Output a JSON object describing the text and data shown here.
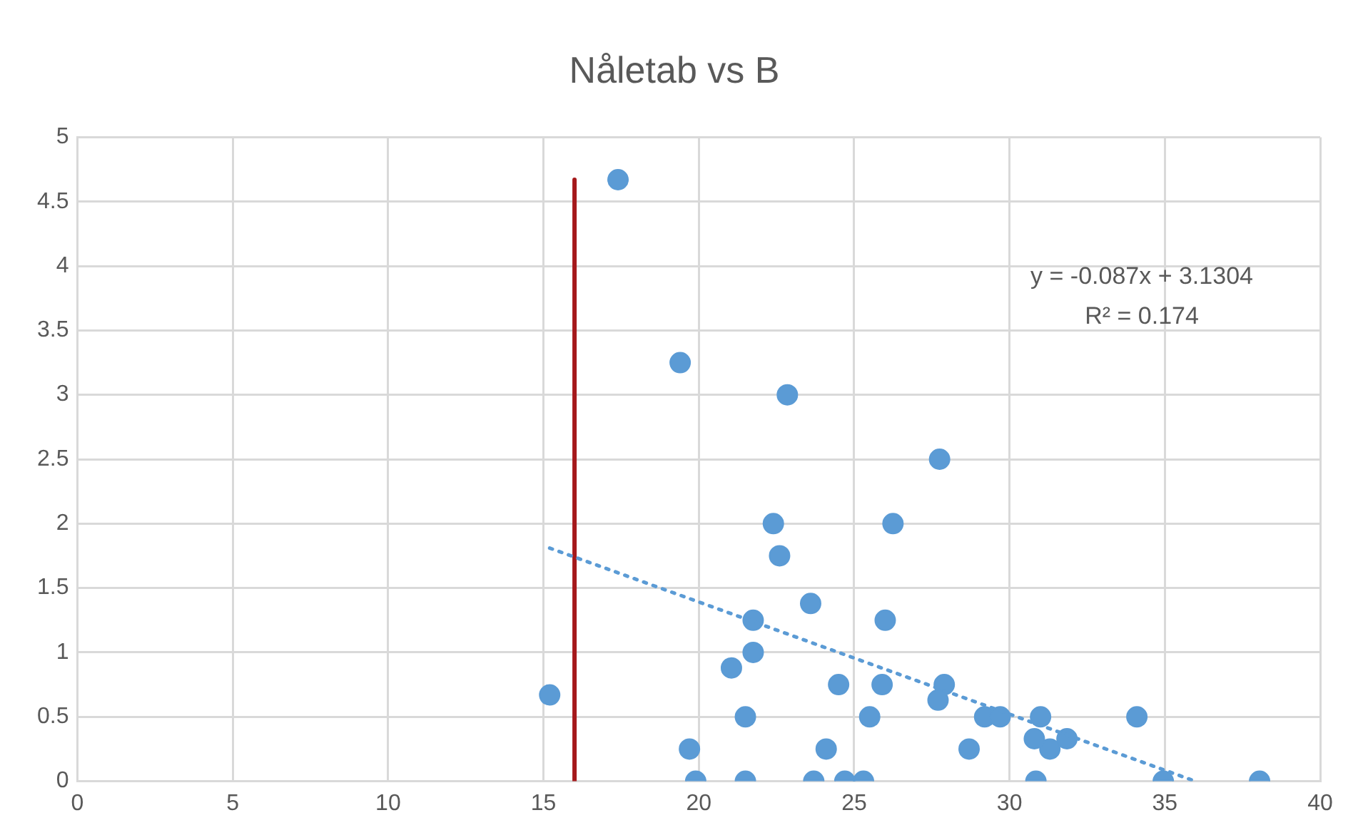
{
  "chart_data": {
    "type": "scatter",
    "title": "Nåletab vs B",
    "xlim": [
      0,
      40
    ],
    "xticks": [
      0,
      5,
      10,
      15,
      20,
      25,
      30,
      35,
      40
    ],
    "ylim": [
      0,
      5
    ],
    "yticks": [
      0,
      0.5,
      1,
      1.5,
      2,
      2.5,
      3,
      3.5,
      4,
      4.5,
      5
    ],
    "grid": true,
    "legend": false,
    "series": [
      {
        "marker": "circle",
        "color": "#5b9bd5",
        "x": [
          15.2,
          17.4,
          19.4,
          22.85,
          27.75,
          22.4,
          26.25,
          22.6,
          23.6,
          21.75,
          26.0,
          21.75,
          21.05,
          24.5,
          25.9,
          27.9,
          27.7,
          21.5,
          25.5,
          29.2,
          29.7,
          31.0,
          34.1,
          19.7,
          24.1,
          28.7,
          31.3,
          30.8,
          31.85,
          19.9,
          21.5,
          23.7,
          24.7,
          25.3,
          30.85,
          34.95,
          38.05
        ],
        "values": [
          0.67,
          4.67,
          3.25,
          3.0,
          2.5,
          2.0,
          2.0,
          1.75,
          1.38,
          1.25,
          1.25,
          1.0,
          0.88,
          0.75,
          0.75,
          0.75,
          0.63,
          0.5,
          0.5,
          0.5,
          0.5,
          0.5,
          0.5,
          0.25,
          0.25,
          0.25,
          0.25,
          0.33,
          0.33,
          0,
          0,
          0,
          0,
          0,
          0,
          0,
          0
        ]
      },
      {
        "type": "line",
        "marker": "none",
        "color": "#5b9bd5",
        "line_style": "dotted",
        "x": [
          15.2,
          35.98
        ],
        "values": [
          1.81,
          0.0
        ]
      },
      {
        "type": "line",
        "marker": "none",
        "color": "#a5191b",
        "line_style": "solid",
        "x": [
          16,
          16
        ],
        "values": [
          0,
          4.67
        ]
      }
    ],
    "annotations": [
      "y = -0.087x + 3.1304",
      "R² = 0.174"
    ]
  }
}
